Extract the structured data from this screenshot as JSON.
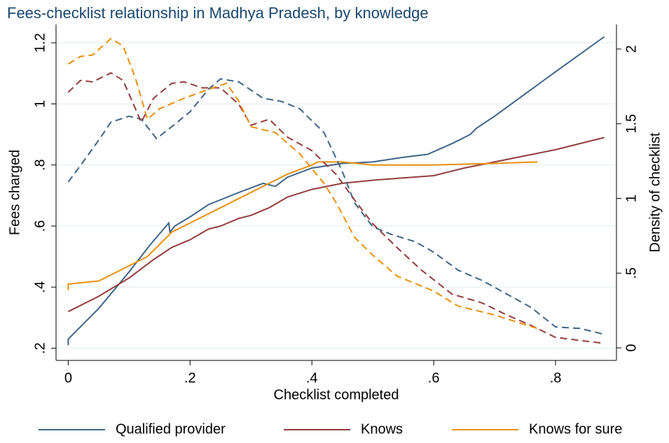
{
  "chart_data": {
    "type": "line",
    "title": "Fees-checklist relationship in Madhya Pradesh, by knowledge",
    "xlabel": "Checklist completed",
    "ylabel": "Fees charged",
    "y2label": "Density of checklist",
    "xlim": [
      -0.02,
      0.9
    ],
    "xticks": [
      0,
      {
        "value": 0.2,
        "label": ".2"
      },
      {
        "value": 0.4,
        "label": ".4"
      },
      {
        "value": 0.6,
        "label": ".6"
      },
      {
        "value": 0.8,
        "label": ".8"
      }
    ],
    "ylim": [
      0.16,
      1.26
    ],
    "yticks": [
      {
        "value": 0.2,
        "label": ".2"
      },
      {
        "value": 0.4,
        "label": ".4"
      },
      {
        "value": 0.6,
        "label": ".6"
      },
      {
        "value": 0.8,
        "label": ".8"
      },
      1,
      1.2
    ],
    "y2lim": [
      -0.084,
      2.164
    ],
    "y2ticks": [
      0,
      {
        "value": 0.5,
        "label": ".5"
      },
      1,
      1.5,
      2
    ],
    "grid": true,
    "legend": "bottom",
    "series": [
      {
        "name": "Qualified provider",
        "color": "#3e6488",
        "x": [
          0,
          0,
          0.05,
          0.1,
          0.135,
          0.165,
          0.167,
          0.175,
          0.2,
          0.23,
          0.28,
          0.32,
          0.34,
          0.36,
          0.4,
          0.45,
          0.5,
          0.55,
          0.59,
          0.63,
          0.66,
          0.67,
          0.7,
          0.8,
          0.88
        ],
        "values": [
          0.21,
          0.23,
          0.33,
          0.45,
          0.54,
          0.61,
          0.58,
          0.6,
          0.63,
          0.67,
          0.71,
          0.74,
          0.73,
          0.76,
          0.79,
          0.805,
          0.81,
          0.825,
          0.835,
          0.87,
          0.9,
          0.92,
          0.96,
          1.105,
          1.22
        ]
      },
      {
        "name": "Knows",
        "color": "#943c3c",
        "x": [
          0,
          0.05,
          0.1,
          0.14,
          0.17,
          0.2,
          0.23,
          0.25,
          0.28,
          0.3,
          0.33,
          0.36,
          0.4,
          0.45,
          0.5,
          0.6,
          0.65,
          0.7,
          0.8,
          0.88
        ],
        "values": [
          0.32,
          0.37,
          0.43,
          0.49,
          0.53,
          0.555,
          0.59,
          0.6,
          0.625,
          0.635,
          0.66,
          0.695,
          0.72,
          0.74,
          0.75,
          0.765,
          0.79,
          0.81,
          0.85,
          0.89
        ]
      },
      {
        "name": "Knows for sure",
        "color": "#e8900c",
        "x": [
          0,
          0,
          0.05,
          0.09,
          0.13,
          0.14,
          0.17,
          0.2,
          0.24,
          0.28,
          0.33,
          0.36,
          0.4,
          0.41,
          0.45,
          0.5,
          0.6,
          0.7,
          0.77
        ],
        "values": [
          0.39,
          0.41,
          0.42,
          0.46,
          0.5,
          0.52,
          0.58,
          0.61,
          0.65,
          0.69,
          0.74,
          0.77,
          0.8,
          0.81,
          0.81,
          0.8,
          0.8,
          0.805,
          0.81
        ]
      },
      {
        "color": "#3e6488",
        "axis": "y2",
        "dash": true,
        "x": [
          0,
          0.02,
          0.05,
          0.07,
          0.1,
          0.12,
          0.145,
          0.17,
          0.2,
          0.23,
          0.25,
          0.28,
          0.32,
          0.35,
          0.38,
          0.42,
          0.45,
          0.47,
          0.5,
          0.53,
          0.57,
          0.6,
          0.64,
          0.68,
          0.72,
          0.76,
          0.8,
          0.84,
          0.88
        ],
        "values": [
          1.11,
          1.22,
          1.39,
          1.51,
          1.55,
          1.53,
          1.4,
          1.48,
          1.58,
          1.73,
          1.8,
          1.78,
          1.67,
          1.65,
          1.6,
          1.44,
          1.18,
          0.97,
          0.81,
          0.76,
          0.71,
          0.64,
          0.52,
          0.45,
          0.36,
          0.27,
          0.14,
          0.13,
          0.09
        ]
      },
      {
        "color": "#943c3c",
        "axis": "y2",
        "dash": true,
        "x": [
          0,
          0.02,
          0.04,
          0.07,
          0.09,
          0.12,
          0.14,
          0.17,
          0.19,
          0.22,
          0.25,
          0.28,
          0.3,
          0.33,
          0.36,
          0.4,
          0.44,
          0.47,
          0.5,
          0.54,
          0.58,
          0.63,
          0.68,
          0.72,
          0.76,
          0.8,
          0.88
        ],
        "values": [
          1.71,
          1.79,
          1.78,
          1.84,
          1.79,
          1.51,
          1.67,
          1.77,
          1.78,
          1.74,
          1.74,
          1.63,
          1.49,
          1.53,
          1.41,
          1.32,
          1.16,
          0.99,
          0.83,
          0.67,
          0.52,
          0.36,
          0.3,
          0.22,
          0.15,
          0.07,
          0.03
        ]
      },
      {
        "color": "#e8900c",
        "axis": "y2",
        "dash": true,
        "x": [
          0,
          0.02,
          0.04,
          0.07,
          0.09,
          0.11,
          0.13,
          0.15,
          0.19,
          0.23,
          0.26,
          0.28,
          0.3,
          0.34,
          0.38,
          0.42,
          0.44,
          0.47,
          0.5,
          0.54,
          0.6,
          0.64,
          0.7,
          0.77
        ],
        "values": [
          1.9,
          1.95,
          1.96,
          2.07,
          2.02,
          1.81,
          1.53,
          1.6,
          1.67,
          1.73,
          1.77,
          1.65,
          1.48,
          1.44,
          1.3,
          1.1,
          0.97,
          0.74,
          0.62,
          0.48,
          0.38,
          0.28,
          0.22,
          0.13
        ]
      }
    ]
  }
}
